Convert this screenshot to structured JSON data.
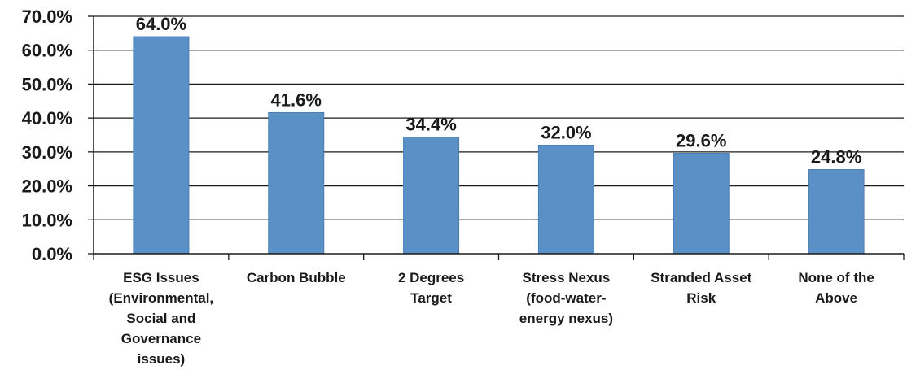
{
  "chart_data": {
    "type": "bar",
    "categories": [
      [
        "ESG Issues",
        "(Environmental,",
        "Social and",
        "Governance",
        "issues)"
      ],
      [
        "Carbon Bubble"
      ],
      [
        "2 Degrees",
        "Target"
      ],
      [
        "Stress Nexus",
        "(food-water-",
        "energy nexus)"
      ],
      [
        "Stranded Asset",
        "Risk"
      ],
      [
        "None of the",
        "Above"
      ]
    ],
    "values": [
      64.0,
      41.6,
      34.4,
      32.0,
      29.6,
      24.8
    ],
    "value_labels": [
      "64.0%",
      "41.6%",
      "34.4%",
      "32.0%",
      "29.6%",
      "24.8%"
    ],
    "ylim": [
      0,
      70
    ],
    "yticks": [
      0,
      10,
      20,
      30,
      40,
      50,
      60,
      70
    ],
    "ytick_labels": [
      "0.0%",
      "10.0%",
      "20.0%",
      "30.0%",
      "40.0%",
      "50.0%",
      "60.0%",
      "70.0%"
    ],
    "grid": true,
    "legend": "none",
    "colors": {
      "bar": "#5b90c6",
      "bar_edge": "#4a7db3",
      "grid": "#1a1a1a",
      "axis": "#1a1a1a"
    }
  }
}
